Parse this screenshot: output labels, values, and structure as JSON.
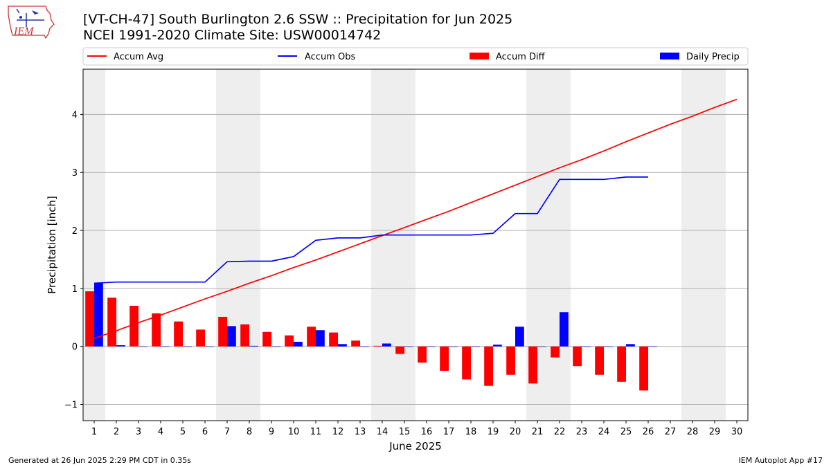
{
  "header": {
    "title_line1": "[VT-CH-47] South Burlington 2.6 SSW :: Precipitation for Jun 2025",
    "title_line2": "NCEI 1991-2020 Climate Site: USW00014742"
  },
  "logo": {
    "text": "IEM",
    "icon": "iem-iowa-logo-icon"
  },
  "footer": {
    "generated": "Generated at 26 Jun 2025 2:29 PM CDT in 0.35s",
    "app": "IEM Autoplot App #17"
  },
  "chart_data": {
    "type": "bar",
    "xlabel": "June 2025",
    "ylabel": "Precipitation [inch]",
    "xlim": [
      0.5,
      30.5
    ],
    "ylim": [
      -1.28,
      4.78
    ],
    "x_ticks": [
      1,
      2,
      3,
      4,
      5,
      6,
      7,
      8,
      9,
      10,
      11,
      12,
      13,
      14,
      15,
      16,
      17,
      18,
      19,
      20,
      21,
      22,
      23,
      24,
      25,
      26,
      27,
      28,
      29,
      30
    ],
    "y_ticks": [
      -1,
      0,
      1,
      2,
      3,
      4
    ],
    "y_tick_labels": [
      "−1",
      "0",
      "1",
      "2",
      "3",
      "4"
    ],
    "grid": "horizontal",
    "legend_position": "top",
    "weekend_shading": [
      [
        0.5,
        1.5
      ],
      [
        6.5,
        8.5
      ],
      [
        13.5,
        15.5
      ],
      [
        20.5,
        22.5
      ],
      [
        27.5,
        29.5
      ]
    ],
    "series": [
      {
        "name": "Accum Avg",
        "kind": "line",
        "color": "#ff0000",
        "x": [
          1,
          2,
          3,
          4,
          5,
          6,
          7,
          8,
          9,
          10,
          11,
          12,
          13,
          14,
          15,
          16,
          17,
          18,
          19,
          20,
          21,
          22,
          23,
          24,
          25,
          26,
          27,
          28,
          29,
          30
        ],
        "values": [
          0.14,
          0.27,
          0.41,
          0.54,
          0.68,
          0.82,
          0.95,
          1.09,
          1.22,
          1.36,
          1.49,
          1.63,
          1.77,
          1.91,
          2.05,
          2.19,
          2.33,
          2.48,
          2.63,
          2.78,
          2.93,
          3.08,
          3.22,
          3.37,
          3.53,
          3.68,
          3.83,
          3.97,
          4.12,
          4.26
        ]
      },
      {
        "name": "Accum Obs",
        "kind": "line",
        "color": "#0000ff",
        "x": [
          1,
          2,
          3,
          4,
          5,
          6,
          7,
          8,
          9,
          10,
          11,
          12,
          13,
          14,
          15,
          16,
          17,
          18,
          19,
          20,
          21,
          22,
          23,
          24,
          25,
          26
        ],
        "values": [
          1.09,
          1.11,
          1.11,
          1.11,
          1.11,
          1.11,
          1.46,
          1.47,
          1.47,
          1.55,
          1.83,
          1.87,
          1.87,
          1.92,
          1.92,
          1.92,
          1.92,
          1.92,
          1.95,
          2.29,
          2.29,
          2.88,
          2.88,
          2.88,
          2.92,
          2.92
        ]
      },
      {
        "name": "Accum Diff",
        "kind": "bar",
        "color": "#ff0000",
        "x": [
          1,
          2,
          3,
          4,
          5,
          6,
          7,
          8,
          9,
          10,
          11,
          12,
          13,
          14,
          15,
          16,
          17,
          18,
          19,
          20,
          21,
          22,
          23,
          24,
          25,
          26
        ],
        "values": [
          0.95,
          0.84,
          0.7,
          0.57,
          0.43,
          0.29,
          0.51,
          0.38,
          0.25,
          0.19,
          0.34,
          0.24,
          0.1,
          0.01,
          -0.13,
          -0.28,
          -0.42,
          -0.57,
          -0.68,
          -0.49,
          -0.64,
          -0.19,
          -0.34,
          -0.49,
          -0.61,
          -0.76
        ]
      },
      {
        "name": "Daily Precip",
        "kind": "bar",
        "color": "#0000ff",
        "x": [
          1,
          2,
          3,
          4,
          5,
          6,
          7,
          8,
          9,
          10,
          11,
          12,
          13,
          14,
          15,
          16,
          17,
          18,
          19,
          20,
          21,
          22,
          23,
          24,
          25,
          26
        ],
        "values": [
          1.09,
          0.02,
          0,
          0,
          0,
          0,
          0.35,
          0.01,
          0,
          0.08,
          0.28,
          0.04,
          0,
          0.05,
          0,
          0,
          0,
          0,
          0.03,
          0.34,
          0,
          0.59,
          0,
          0,
          0.04,
          0
        ]
      }
    ]
  }
}
